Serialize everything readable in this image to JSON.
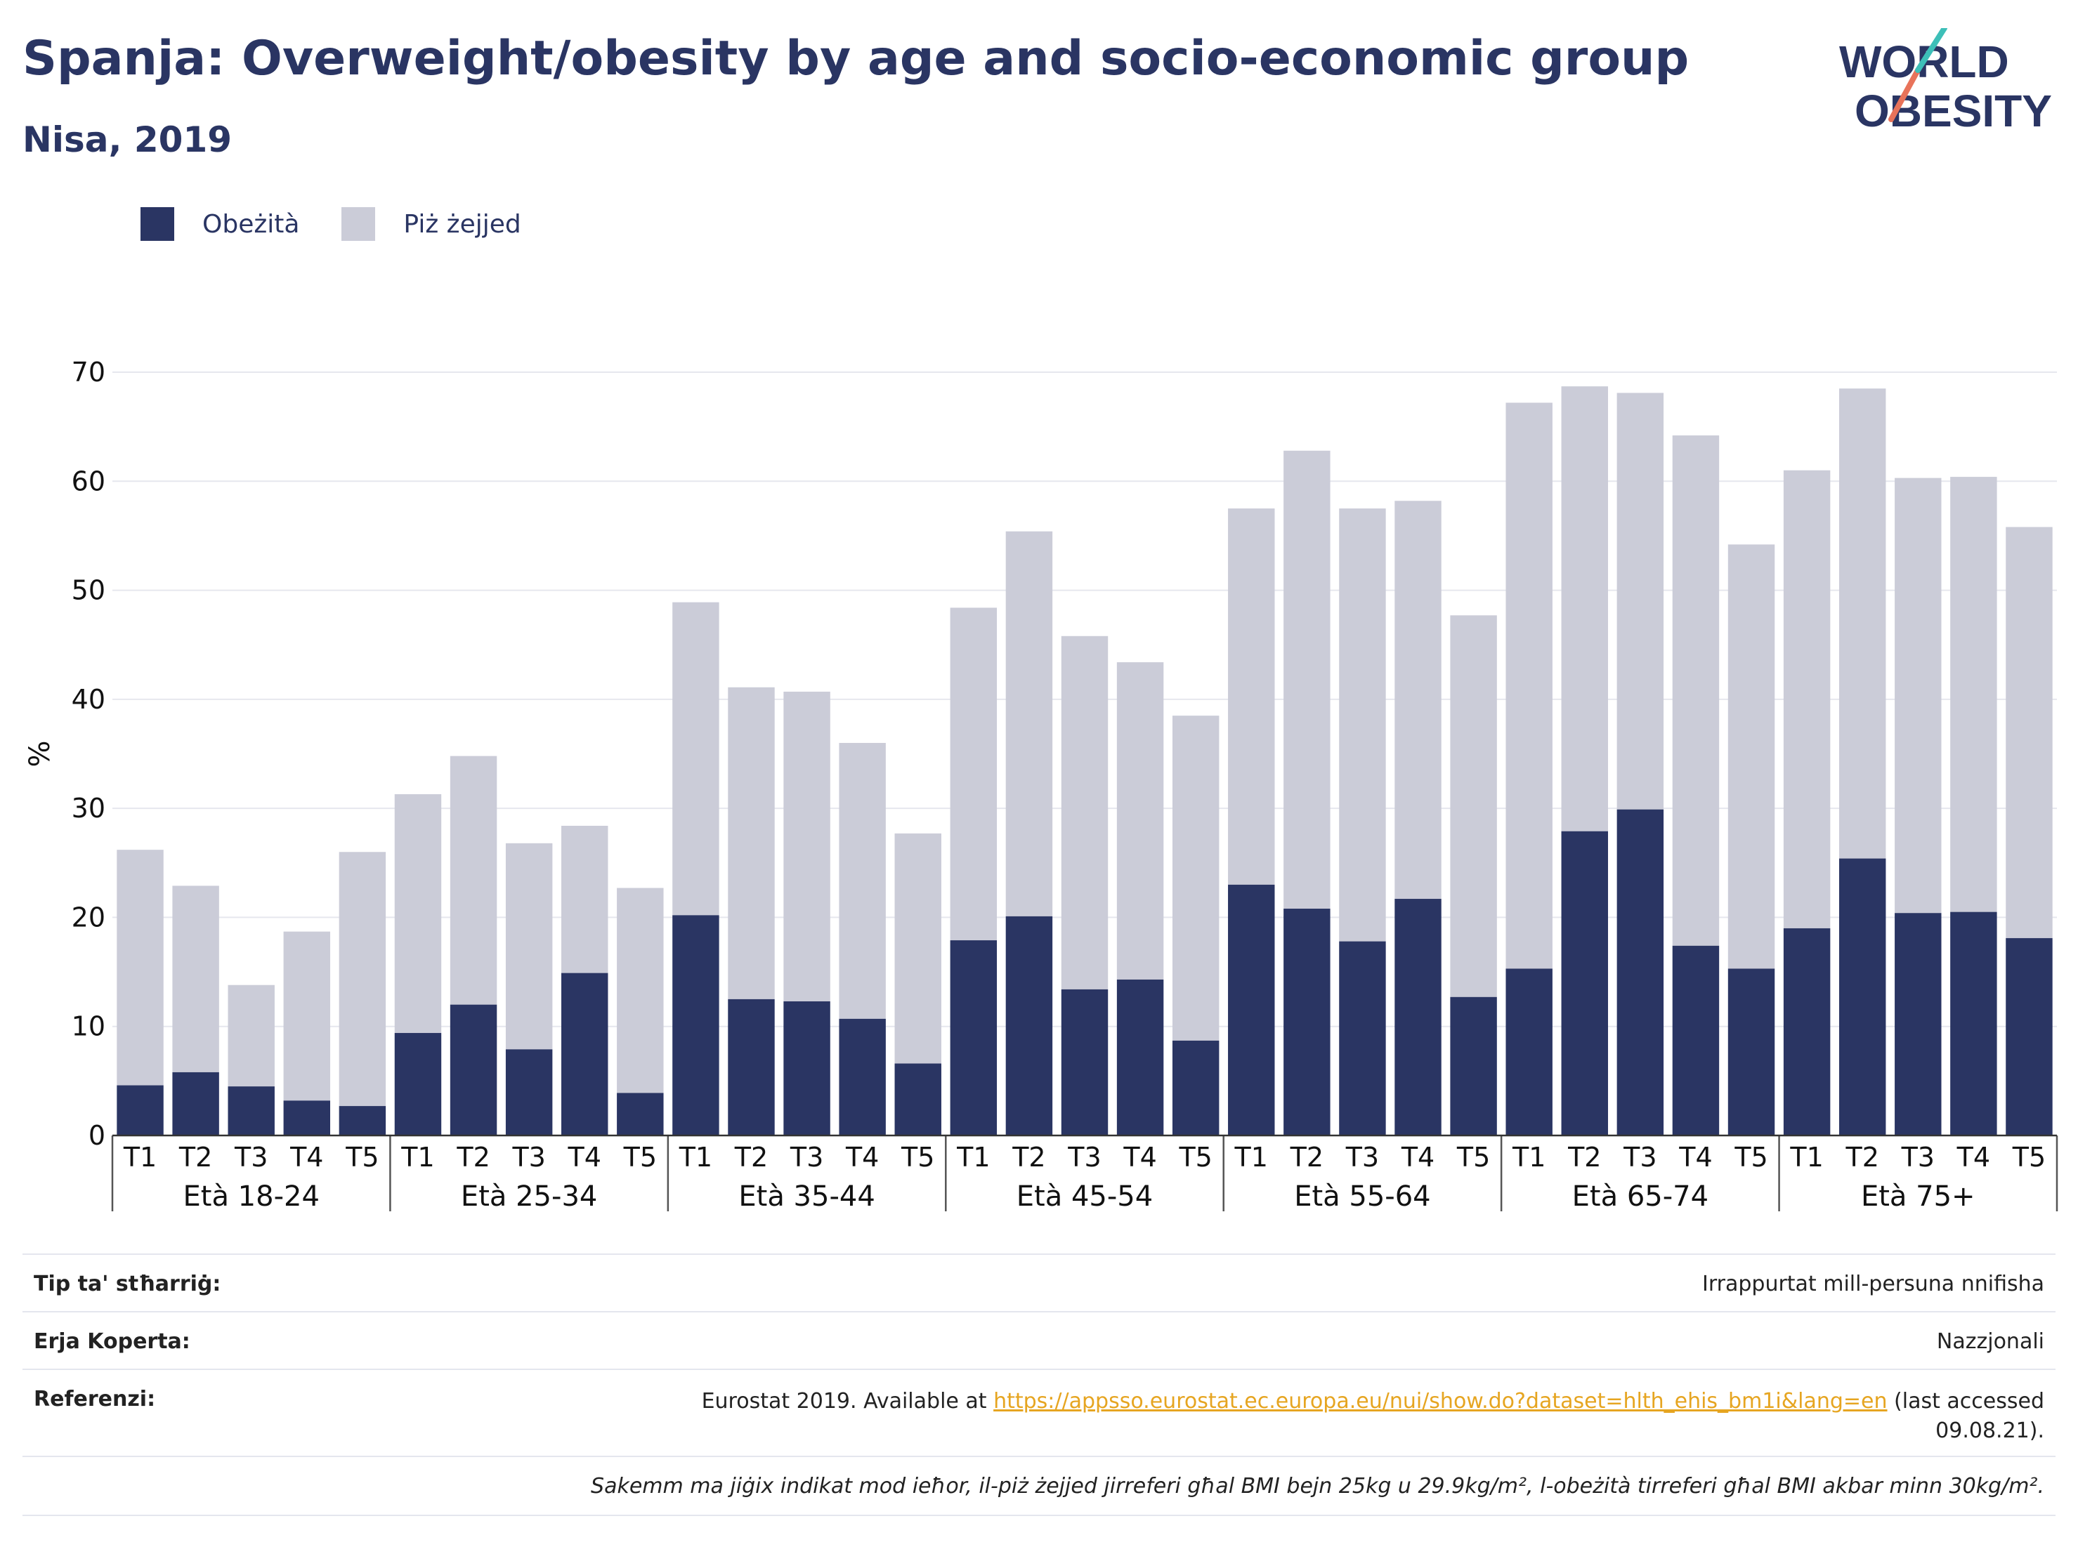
{
  "header": {
    "title": "Spanja: Overweight/obesity by age and socio-economic group",
    "subtitle": "Nisa, 2019"
  },
  "logo": {
    "line1": "WORLD",
    "line2": "OBESITY",
    "accent1": "#3dbfb8",
    "accent2": "#e8735a"
  },
  "legend": {
    "items": [
      {
        "label": "Obeżità",
        "color": "#2a3563"
      },
      {
        "label": "Piż żejjed",
        "color": "#cbccd8"
      }
    ]
  },
  "chart_data": {
    "type": "bar",
    "stacked": true,
    "ylabel": "%",
    "ylim": [
      0,
      70
    ],
    "yticks": [
      0,
      10,
      20,
      30,
      40,
      50,
      60,
      70
    ],
    "grid": true,
    "legend_position": "top-left",
    "groups": [
      {
        "label": "Età 18-24",
        "categories": [
          "T1",
          "T2",
          "T3",
          "T4",
          "T5"
        ],
        "obese": [
          4.6,
          5.8,
          4.5,
          3.2,
          2.7
        ],
        "total": [
          26.2,
          22.9,
          13.8,
          18.7,
          26.0
        ]
      },
      {
        "label": "Età 25-34",
        "categories": [
          "T1",
          "T2",
          "T3",
          "T4",
          "T5"
        ],
        "obese": [
          9.4,
          12.0,
          7.9,
          14.9,
          3.9
        ],
        "total": [
          31.3,
          34.8,
          26.8,
          28.4,
          22.7
        ]
      },
      {
        "label": "Età 35-44",
        "categories": [
          "T1",
          "T2",
          "T3",
          "T4",
          "T5"
        ],
        "obese": [
          20.2,
          12.5,
          12.3,
          10.7,
          6.6
        ],
        "total": [
          48.9,
          41.1,
          40.7,
          36.0,
          27.7
        ]
      },
      {
        "label": "Età 45-54",
        "categories": [
          "T1",
          "T2",
          "T3",
          "T4",
          "T5"
        ],
        "obese": [
          17.9,
          20.1,
          13.4,
          14.3,
          8.7
        ],
        "total": [
          48.4,
          55.4,
          45.8,
          43.4,
          38.5
        ]
      },
      {
        "label": "Età 55-64",
        "categories": [
          "T1",
          "T2",
          "T3",
          "T4",
          "T5"
        ],
        "obese": [
          23.0,
          20.8,
          17.8,
          21.7,
          12.7
        ],
        "total": [
          57.5,
          62.8,
          57.5,
          58.2,
          47.7
        ]
      },
      {
        "label": "Età 65-74",
        "categories": [
          "T1",
          "T2",
          "T3",
          "T4",
          "T5"
        ],
        "obese": [
          15.3,
          27.9,
          29.9,
          17.4,
          15.3
        ],
        "total": [
          67.2,
          68.7,
          68.1,
          64.2,
          54.2
        ]
      },
      {
        "label": "Età 75+",
        "categories": [
          "T1",
          "T2",
          "T3",
          "T4",
          "T5"
        ],
        "obese": [
          19.0,
          25.4,
          20.4,
          20.5,
          18.1
        ],
        "total": [
          61.0,
          68.5,
          60.3,
          60.4,
          55.8
        ]
      }
    ]
  },
  "meta": {
    "survey_type_key": "Tip ta' stħarriġ:",
    "survey_type_value": "Irrappurtat mill-persuna nnifisha",
    "area_key": "Erja Koperta:",
    "area_value": "Nazzjonali",
    "refs_key": "Referenzi:",
    "refs_prefix": "Eurostat 2019. Available at ",
    "refs_link": "https://appsso.eurostat.ec.europa.eu/nui/show.do?dataset=hlth_ehis_bm1i&lang=en",
    "refs_suffix": " (last accessed",
    "refs_date": "09.08.21).",
    "note": "Sakemm ma jiġix indikat mod ieħor, il-piż żejjed jirreferi għal BMI bejn 25kg u 29.9kg/m², l-obeżità tirreferi għal BMI akbar minn 30kg/m²."
  }
}
